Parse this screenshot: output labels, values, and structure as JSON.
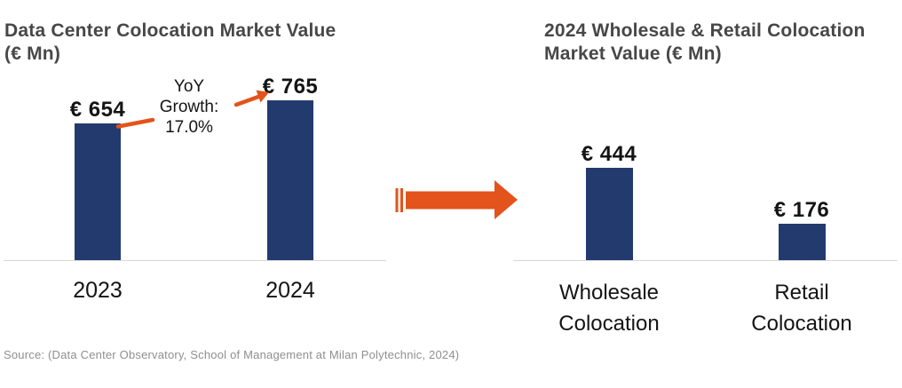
{
  "page": {
    "background": "#ffffff",
    "source_note": "Source: (Data Center Observatory, School of Management at Milan Polytechnic, 2024)"
  },
  "colors": {
    "bar_navy": "#223A6E",
    "accent_orange": "#E3531C",
    "title_gray": "#474747",
    "baseline_gray": "#D8D8D8",
    "source_gray": "#8F8F8F",
    "text_black": "#141414"
  },
  "transition_arrow": {
    "meaning": "leads-to / breakdown arrow between the two charts",
    "color": "#E3531C"
  },
  "chart_data": [
    {
      "type": "bar",
      "title": "Data Center Colocation Market Value (€ Mn)",
      "categories": [
        "2023",
        "2024"
      ],
      "values": [
        654,
        765
      ],
      "value_labels": [
        "€ 654",
        "€ 765"
      ],
      "bar_color": "#223A6E",
      "ylim": [
        0,
        765
      ],
      "grid": false,
      "legend": "none",
      "annotation": {
        "text": "YoY Growth: 17.0%",
        "text_lines": [
          "YoY",
          "Growth:",
          "17.0%"
        ],
        "arrow_color": "#E3531C",
        "points_from": "2023",
        "points_to": "2024"
      }
    },
    {
      "type": "bar",
      "title": "2024 Wholesale & Retail Colocation Market Value (€ Mn)",
      "categories": [
        "Wholesale Colocation",
        "Retail Colocation"
      ],
      "values": [
        444,
        176
      ],
      "value_labels": [
        "€ 444",
        "€ 176"
      ],
      "bar_color": "#223A6E",
      "ylim": [
        0,
        765
      ],
      "grid": false,
      "legend": "none"
    }
  ]
}
